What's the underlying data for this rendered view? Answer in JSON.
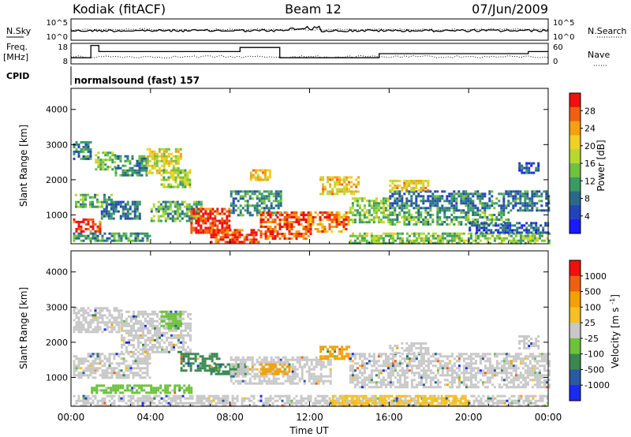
{
  "header": {
    "station": "Kodiak (fitACF)",
    "beam": "Beam 12",
    "date": "07/Jun/2009"
  },
  "strip_labels": {
    "nsky": "N.Sky",
    "nsearch": "N.Search",
    "freq_line1": "Freq.",
    "freq_line2": "[MHz]",
    "nave": "Nave",
    "cpid": "CPID",
    "cpid_value": "normalsound (fast) 157",
    "noise_ticks_left": [
      "10^5",
      "10^0"
    ],
    "noise_ticks_right": [
      "10^5",
      "10^0"
    ],
    "freq_ticks_left": [
      "18",
      "8"
    ],
    "freq_ticks_right": [
      "60",
      "0"
    ]
  },
  "chart_data": [
    {
      "type": "heatmap",
      "name": "power",
      "ylabel": "Slant Range [km]",
      "xlabel": "",
      "ylim": [
        180,
        4600
      ],
      "y_ticks": [
        1000,
        2000,
        3000,
        4000
      ],
      "xlim_hours": [
        0,
        24
      ],
      "colorbar": {
        "label": "Power [dB]",
        "ticks": [
          "28",
          "24",
          "20",
          "16",
          "12",
          "8",
          "4"
        ],
        "colors": [
          "#1a1aff",
          "#2244bb",
          "#2a6a88",
          "#3a9a66",
          "#6fc23d",
          "#b8d830",
          "#f0d020",
          "#f5a011",
          "#f06010",
          "#f01010"
        ],
        "range": [
          0,
          30
        ]
      },
      "regions": [
        {
          "t": [
            0.1,
            1.0
          ],
          "r": [
            2600,
            3100
          ],
          "v": 8
        },
        {
          "t": [
            1.2,
            2.2
          ],
          "r": [
            2300,
            2800
          ],
          "v": 14
        },
        {
          "t": [
            2.2,
            3.8
          ],
          "r": [
            2100,
            2700
          ],
          "v": 10
        },
        {
          "t": [
            3.8,
            5.5
          ],
          "r": [
            2200,
            2900
          ],
          "v": 18
        },
        {
          "t": [
            4.5,
            6.0
          ],
          "r": [
            1800,
            2300
          ],
          "v": 16
        },
        {
          "t": [
            0.2,
            2.0
          ],
          "r": [
            1200,
            1600
          ],
          "v": 12
        },
        {
          "t": [
            0.1,
            1.5
          ],
          "r": [
            500,
            900
          ],
          "v": 28
        },
        {
          "t": [
            0.1,
            4.0
          ],
          "r": [
            250,
            500
          ],
          "v": 10
        },
        {
          "t": [
            1.5,
            3.5
          ],
          "r": [
            900,
            1400
          ],
          "v": 8
        },
        {
          "t": [
            4.0,
            6.5
          ],
          "r": [
            800,
            1400
          ],
          "v": 12
        },
        {
          "t": [
            6.0,
            8.0
          ],
          "r": [
            500,
            1200
          ],
          "v": 28
        },
        {
          "t": [
            7.0,
            9.5
          ],
          "r": [
            200,
            600
          ],
          "v": 27
        },
        {
          "t": [
            8.0,
            10.5
          ],
          "r": [
            1000,
            1700
          ],
          "v": 10
        },
        {
          "t": [
            9.5,
            12.0
          ],
          "r": [
            300,
            1100
          ],
          "v": 26
        },
        {
          "t": [
            12.0,
            14.0
          ],
          "r": [
            500,
            1100
          ],
          "v": 24
        },
        {
          "t": [
            12.5,
            14.5
          ],
          "r": [
            1600,
            2100
          ],
          "v": 20
        },
        {
          "t": [
            14.0,
            16.0
          ],
          "r": [
            800,
            1500
          ],
          "v": 14
        },
        {
          "t": [
            14.0,
            24.0
          ],
          "r": [
            220,
            500
          ],
          "v": 14
        },
        {
          "t": [
            16.0,
            24.0
          ],
          "r": [
            1100,
            1700
          ],
          "v": 8
        },
        {
          "t": [
            16.0,
            22.0
          ],
          "r": [
            700,
            1100
          ],
          "v": 12
        },
        {
          "t": [
            20.0,
            24.0
          ],
          "r": [
            500,
            800
          ],
          "v": 6
        },
        {
          "t": [
            22.5,
            23.5
          ],
          "r": [
            2200,
            2500
          ],
          "v": 6
        },
        {
          "t": [
            16.0,
            18.0
          ],
          "r": [
            1700,
            2000
          ],
          "v": 20
        },
        {
          "t": [
            9.0,
            10.0
          ],
          "r": [
            2000,
            2300
          ],
          "v": 20
        }
      ]
    },
    {
      "type": "heatmap",
      "name": "velocity",
      "ylabel": "Slant Range [km]",
      "xlabel": "Time UT",
      "ylim": [
        180,
        4600
      ],
      "y_ticks": [
        1000,
        2000,
        3000,
        4000
      ],
      "x_ticks": [
        "00:00",
        "04:00",
        "08:00",
        "12:00",
        "16:00",
        "20:00",
        "00:00"
      ],
      "colorbar": {
        "label": "Velocity [m s^-1]",
        "ticks": [
          "1000",
          "500",
          "100",
          "25",
          "-25",
          "-100",
          "-500",
          "-1000"
        ],
        "colors": [
          "#1a2aee",
          "#2a5aa0",
          "#3a8850",
          "#6cc23a",
          "#c8c8c8",
          "#f5c020",
          "#f5a000",
          "#f06010",
          "#f01010"
        ]
      },
      "regions": [
        {
          "t": [
            0.1,
            2.5
          ],
          "r": [
            2300,
            3000
          ],
          "c": "#c8c8c8"
        },
        {
          "t": [
            2.5,
            6.0
          ],
          "r": [
            1700,
            2900
          ],
          "c": "#c8c8c8"
        },
        {
          "t": [
            4.5,
            5.5
          ],
          "r": [
            2400,
            2900
          ],
          "c": "#6cc23a"
        },
        {
          "t": [
            0.1,
            4.0
          ],
          "r": [
            1000,
            1700
          ],
          "c": "#c8c8c8"
        },
        {
          "t": [
            5.5,
            7.5
          ],
          "r": [
            1200,
            1700
          ],
          "c": "#3a8850"
        },
        {
          "t": [
            7.0,
            9.0
          ],
          "r": [
            1100,
            1400
          ],
          "c": "#3a8850"
        },
        {
          "t": [
            1.0,
            6.0
          ],
          "r": [
            550,
            800
          ],
          "c": "#6cc23a"
        },
        {
          "t": [
            0.1,
            24.0
          ],
          "r": [
            200,
            500
          ],
          "c": "#c8c8c8"
        },
        {
          "t": [
            8.0,
            13.0
          ],
          "r": [
            800,
            1600
          ],
          "c": "#c8c8c8"
        },
        {
          "t": [
            9.5,
            11.0
          ],
          "r": [
            1100,
            1400
          ],
          "c": "#f5a000"
        },
        {
          "t": [
            12.5,
            14.0
          ],
          "r": [
            1500,
            1900
          ],
          "c": "#f5a000"
        },
        {
          "t": [
            14.0,
            24.0
          ],
          "r": [
            700,
            1700
          ],
          "c": "#c8c8c8"
        },
        {
          "t": [
            13.0,
            20.0
          ],
          "r": [
            220,
            500
          ],
          "c": "#f5c020"
        },
        {
          "t": [
            16.0,
            18.0
          ],
          "r": [
            1700,
            2000
          ],
          "c": "#c8c8c8"
        },
        {
          "t": [
            22.5,
            23.5
          ],
          "r": [
            1800,
            2200
          ],
          "c": "#c8c8c8"
        }
      ]
    }
  ],
  "noise_strip": {
    "sky_level": 0.45,
    "search_level": 0.5,
    "freq_segments": [
      {
        "t0": 0.0,
        "t1": 1.0,
        "f": 11
      },
      {
        "t0": 1.0,
        "t1": 1.4,
        "f": 17
      },
      {
        "t0": 1.4,
        "t1": 8.5,
        "f": 14
      },
      {
        "t0": 8.5,
        "t1": 10.5,
        "f": 16
      },
      {
        "t0": 10.5,
        "t1": 15.5,
        "f": 11
      },
      {
        "t0": 15.5,
        "t1": 23.0,
        "f": 13
      },
      {
        "t0": 23.0,
        "t1": 24.0,
        "f": 14
      }
    ]
  }
}
